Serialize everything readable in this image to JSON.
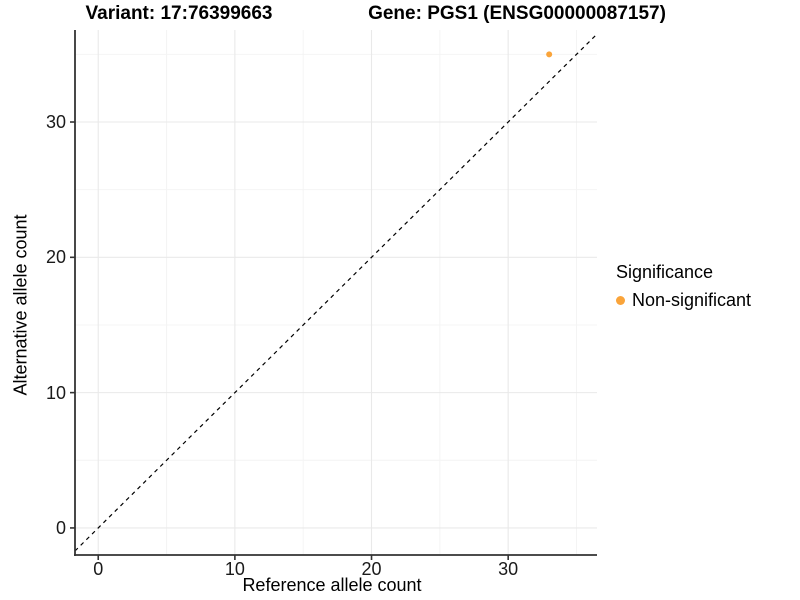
{
  "chart_data": {
    "type": "scatter",
    "titles": {
      "left": "Variant: 17:76399663",
      "right": "Gene: PGS1 (ENSG00000087157)"
    },
    "xlabel": "Reference allele count",
    "ylabel": "Alternative allele count",
    "xlim": [
      -1.7,
      36.5
    ],
    "ylim": [
      -2.0,
      36.8
    ],
    "x_ticks": [
      0,
      10,
      20,
      30
    ],
    "y_ticks": [
      0,
      10,
      20,
      30
    ],
    "x_minor_ticks": [
      5,
      15,
      25,
      35
    ],
    "y_minor_ticks": [
      5,
      15,
      25,
      35
    ],
    "grid": "major+minor",
    "series": [
      {
        "name": "Non-significant",
        "color": "#FAA43A",
        "points": [
          {
            "x": 33,
            "y": 35
          }
        ]
      }
    ],
    "reference_line": {
      "type": "identity",
      "slope": 1,
      "intercept": 0,
      "style": "dashed",
      "color": "#000000"
    },
    "legend": {
      "title": "Significance",
      "position": "right",
      "entries": [
        {
          "label": "Non-significant",
          "color": "#FAA43A"
        }
      ]
    }
  },
  "colors": {
    "background": "#FFFFFF",
    "axis_line": "#333333",
    "tick_mark": "#333333",
    "grid_major": "#E9E9E9",
    "grid_minor": "#F4F4F4",
    "point": "#FAA43A"
  }
}
